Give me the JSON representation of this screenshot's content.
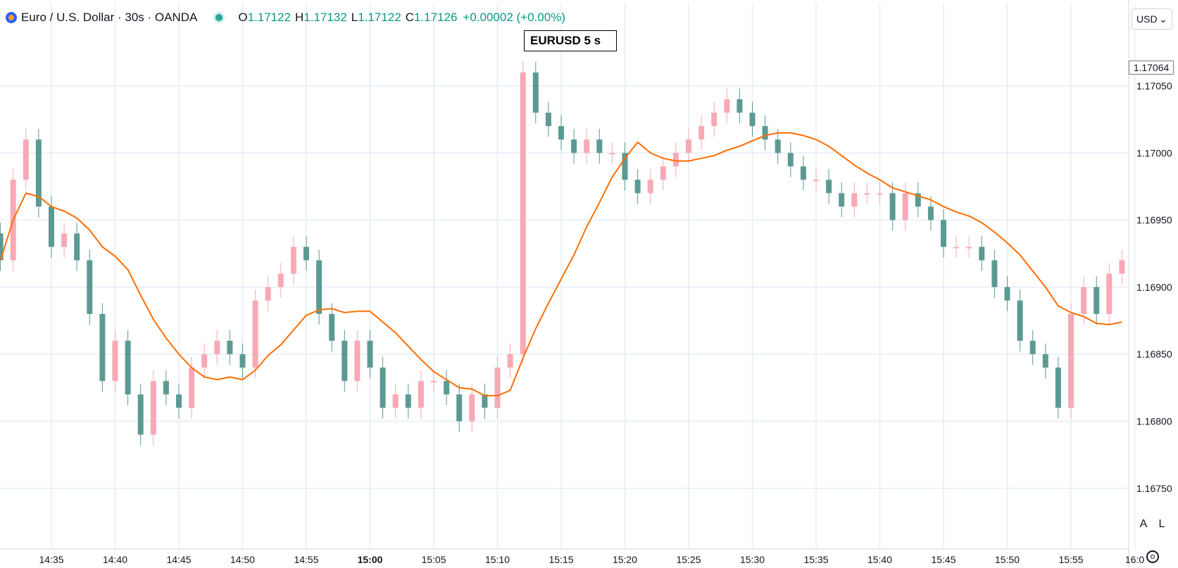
{
  "header": {
    "symbol_title": "Euro / U.S. Dollar · 30s · OANDA",
    "ohlc": [
      {
        "label": "O",
        "value": "1.17122"
      },
      {
        "label": "H",
        "value": "1.17132"
      },
      {
        "label": "L",
        "value": "1.17122"
      },
      {
        "label": "C",
        "value": "1.17126"
      }
    ],
    "change": "+0.00002 (+0.00%)"
  },
  "watermark_text": "EURUSD  5 s",
  "currency_selector": "USD",
  "current_price_tag": "1.17064",
  "scale_buttons": {
    "auto": "A",
    "log": "L"
  },
  "colors": {
    "up": "#f7a9b5",
    "down": "#5b9a92",
    "ma": "#ff6d00",
    "drawing": "#2432c9",
    "grid": "#e6eef6",
    "cross": "#e8132b"
  },
  "chart_data": {
    "type": "candlestick",
    "y_ticks": [
      "1.17050",
      "1.17000",
      "1.16950",
      "1.16900",
      "1.16850",
      "1.16800",
      "1.16750"
    ],
    "y_range": [
      1.1671,
      1.1713
    ],
    "x_ticks": [
      "14:35",
      "14:40",
      "14:45",
      "14:50",
      "14:55",
      "15:00",
      "15:05",
      "15:10",
      "15:15",
      "15:20",
      "15:25",
      "15:30",
      "15:35",
      "15:40",
      "15:45",
      "15:50",
      "15:55",
      "16:0"
    ],
    "x_range_minutes": [
      "14:31:00",
      "16:00:00"
    ],
    "candles": [
      {
        "t": "14:31",
        "c": 1.1692
      },
      {
        "t": "14:32",
        "c": 1.1698
      },
      {
        "t": "14:33",
        "c": 1.1701
      },
      {
        "t": "14:34",
        "c": 1.1696
      },
      {
        "t": "14:35",
        "c": 1.1693
      },
      {
        "t": "14:36",
        "c": 1.1694
      },
      {
        "t": "14:37",
        "c": 1.1692
      },
      {
        "t": "14:38",
        "c": 1.1688
      },
      {
        "t": "14:39",
        "c": 1.1683
      },
      {
        "t": "14:40",
        "c": 1.1686
      },
      {
        "t": "14:41",
        "c": 1.1682
      },
      {
        "t": "14:42",
        "c": 1.1679
      },
      {
        "t": "14:43",
        "c": 1.1683
      },
      {
        "t": "14:44",
        "c": 1.1682
      },
      {
        "t": "14:45",
        "c": 1.1681
      },
      {
        "t": "14:46",
        "c": 1.1684
      },
      {
        "t": "14:47",
        "c": 1.1685
      },
      {
        "t": "14:48",
        "c": 1.1686
      },
      {
        "t": "14:49",
        "c": 1.1685
      },
      {
        "t": "14:50",
        "c": 1.1684
      },
      {
        "t": "14:51",
        "c": 1.1689
      },
      {
        "t": "14:52",
        "c": 1.169
      },
      {
        "t": "14:53",
        "c": 1.1691
      },
      {
        "t": "14:54",
        "c": 1.1693
      },
      {
        "t": "14:55",
        "c": 1.1692
      },
      {
        "t": "14:56",
        "c": 1.1688
      },
      {
        "t": "14:57",
        "c": 1.1686
      },
      {
        "t": "14:58",
        "c": 1.1683
      },
      {
        "t": "14:59",
        "c": 1.1686
      },
      {
        "t": "15:00",
        "c": 1.1684
      },
      {
        "t": "15:01",
        "c": 1.1681
      },
      {
        "t": "15:02",
        "c": 1.1682
      },
      {
        "t": "15:03",
        "c": 1.1681
      },
      {
        "t": "15:04",
        "c": 1.1683
      },
      {
        "t": "15:05",
        "c": 1.1683
      },
      {
        "t": "15:06",
        "c": 1.1682
      },
      {
        "t": "15:07",
        "c": 1.168
      },
      {
        "t": "15:08",
        "c": 1.1682
      },
      {
        "t": "15:09",
        "c": 1.1681
      },
      {
        "t": "15:10",
        "c": 1.1684
      },
      {
        "t": "15:11",
        "c": 1.1685
      },
      {
        "t": "15:12",
        "c": 1.1706
      },
      {
        "t": "15:13",
        "c": 1.1703
      },
      {
        "t": "15:14",
        "c": 1.1702
      },
      {
        "t": "15:15",
        "c": 1.1701
      },
      {
        "t": "15:16",
        "c": 1.17
      },
      {
        "t": "15:17",
        "c": 1.1701
      },
      {
        "t": "15:18",
        "c": 1.17
      },
      {
        "t": "15:19",
        "c": 1.17
      },
      {
        "t": "15:20",
        "c": 1.1698
      },
      {
        "t": "15:21",
        "c": 1.1697
      },
      {
        "t": "15:22",
        "c": 1.1698
      },
      {
        "t": "15:23",
        "c": 1.1699
      },
      {
        "t": "15:24",
        "c": 1.17
      },
      {
        "t": "15:25",
        "c": 1.1701
      },
      {
        "t": "15:26",
        "c": 1.1702
      },
      {
        "t": "15:27",
        "c": 1.1703
      },
      {
        "t": "15:28",
        "c": 1.1704
      },
      {
        "t": "15:29",
        "c": 1.1703
      },
      {
        "t": "15:30",
        "c": 1.1702
      },
      {
        "t": "15:31",
        "c": 1.1701
      },
      {
        "t": "15:32",
        "c": 1.17
      },
      {
        "t": "15:33",
        "c": 1.1699
      },
      {
        "t": "15:34",
        "c": 1.1698
      },
      {
        "t": "15:35",
        "c": 1.1698
      },
      {
        "t": "15:36",
        "c": 1.1697
      },
      {
        "t": "15:37",
        "c": 1.1696
      },
      {
        "t": "15:38",
        "c": 1.1697
      },
      {
        "t": "15:39",
        "c": 1.1697
      },
      {
        "t": "15:40",
        "c": 1.1697
      },
      {
        "t": "15:41",
        "c": 1.1695
      },
      {
        "t": "15:42",
        "c": 1.1697
      },
      {
        "t": "15:43",
        "c": 1.1696
      },
      {
        "t": "15:44",
        "c": 1.1695
      },
      {
        "t": "15:45",
        "c": 1.1693
      },
      {
        "t": "15:46",
        "c": 1.1693
      },
      {
        "t": "15:47",
        "c": 1.1693
      },
      {
        "t": "15:48",
        "c": 1.1692
      },
      {
        "t": "15:49",
        "c": 1.169
      },
      {
        "t": "15:50",
        "c": 1.1689
      },
      {
        "t": "15:51",
        "c": 1.1686
      },
      {
        "t": "15:52",
        "c": 1.1685
      },
      {
        "t": "15:53",
        "c": 1.1684
      },
      {
        "t": "15:54",
        "c": 1.1681
      },
      {
        "t": "15:55",
        "c": 1.1688
      },
      {
        "t": "15:56",
        "c": 1.169
      },
      {
        "t": "15:57",
        "c": 1.1688
      },
      {
        "t": "15:58",
        "c": 1.1691
      },
      {
        "t": "15:59",
        "c": 1.1692
      }
    ],
    "overlay_candles_note": "",
    "series": [],
    "grid": true
  }
}
